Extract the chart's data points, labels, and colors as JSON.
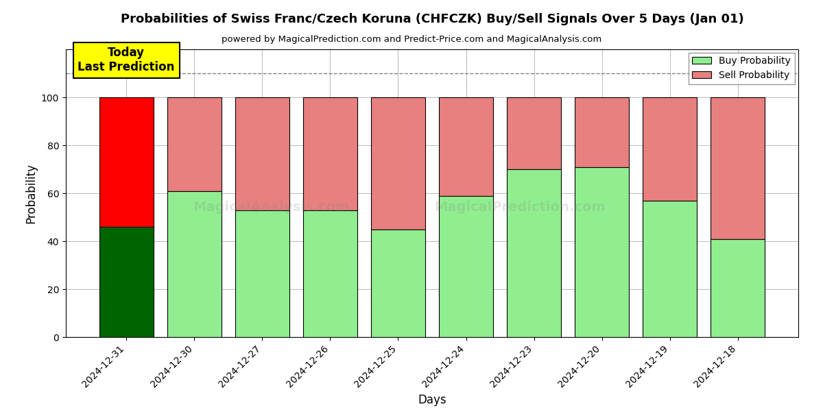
{
  "title": "Probabilities of Swiss Franc/Czech Koruna (CHFCZK) Buy/Sell Signals Over 5 Days (Jan 01)",
  "subtitle": "powered by MagicalPrediction.com and Predict-Price.com and MagicalAnalysis.com",
  "xlabel": "Days",
  "ylabel": "Probability",
  "categories": [
    "2024-12-31",
    "2024-12-30",
    "2024-12-27",
    "2024-12-26",
    "2024-12-25",
    "2024-12-24",
    "2024-12-23",
    "2024-12-20",
    "2024-12-19",
    "2024-12-18"
  ],
  "buy_values": [
    46,
    61,
    53,
    53,
    45,
    59,
    70,
    71,
    57,
    41
  ],
  "sell_values": [
    54,
    39,
    47,
    47,
    55,
    41,
    30,
    29,
    43,
    59
  ],
  "buy_color_today": "#006400",
  "sell_color_today": "#FF0000",
  "sell_color_normal": "#E88080",
  "buy_color_light": "#90EE90",
  "ylim": [
    0,
    120
  ],
  "yticks": [
    0,
    20,
    40,
    60,
    80,
    100
  ],
  "dashed_line_y": 110,
  "annotation_text": "Today\nLast Prediction",
  "annotation_bg": "#FFFF00",
  "legend_buy": "Buy Probability",
  "legend_sell": "Sell Probability",
  "figsize": [
    12,
    6
  ],
  "dpi": 100,
  "bar_width": 0.8
}
